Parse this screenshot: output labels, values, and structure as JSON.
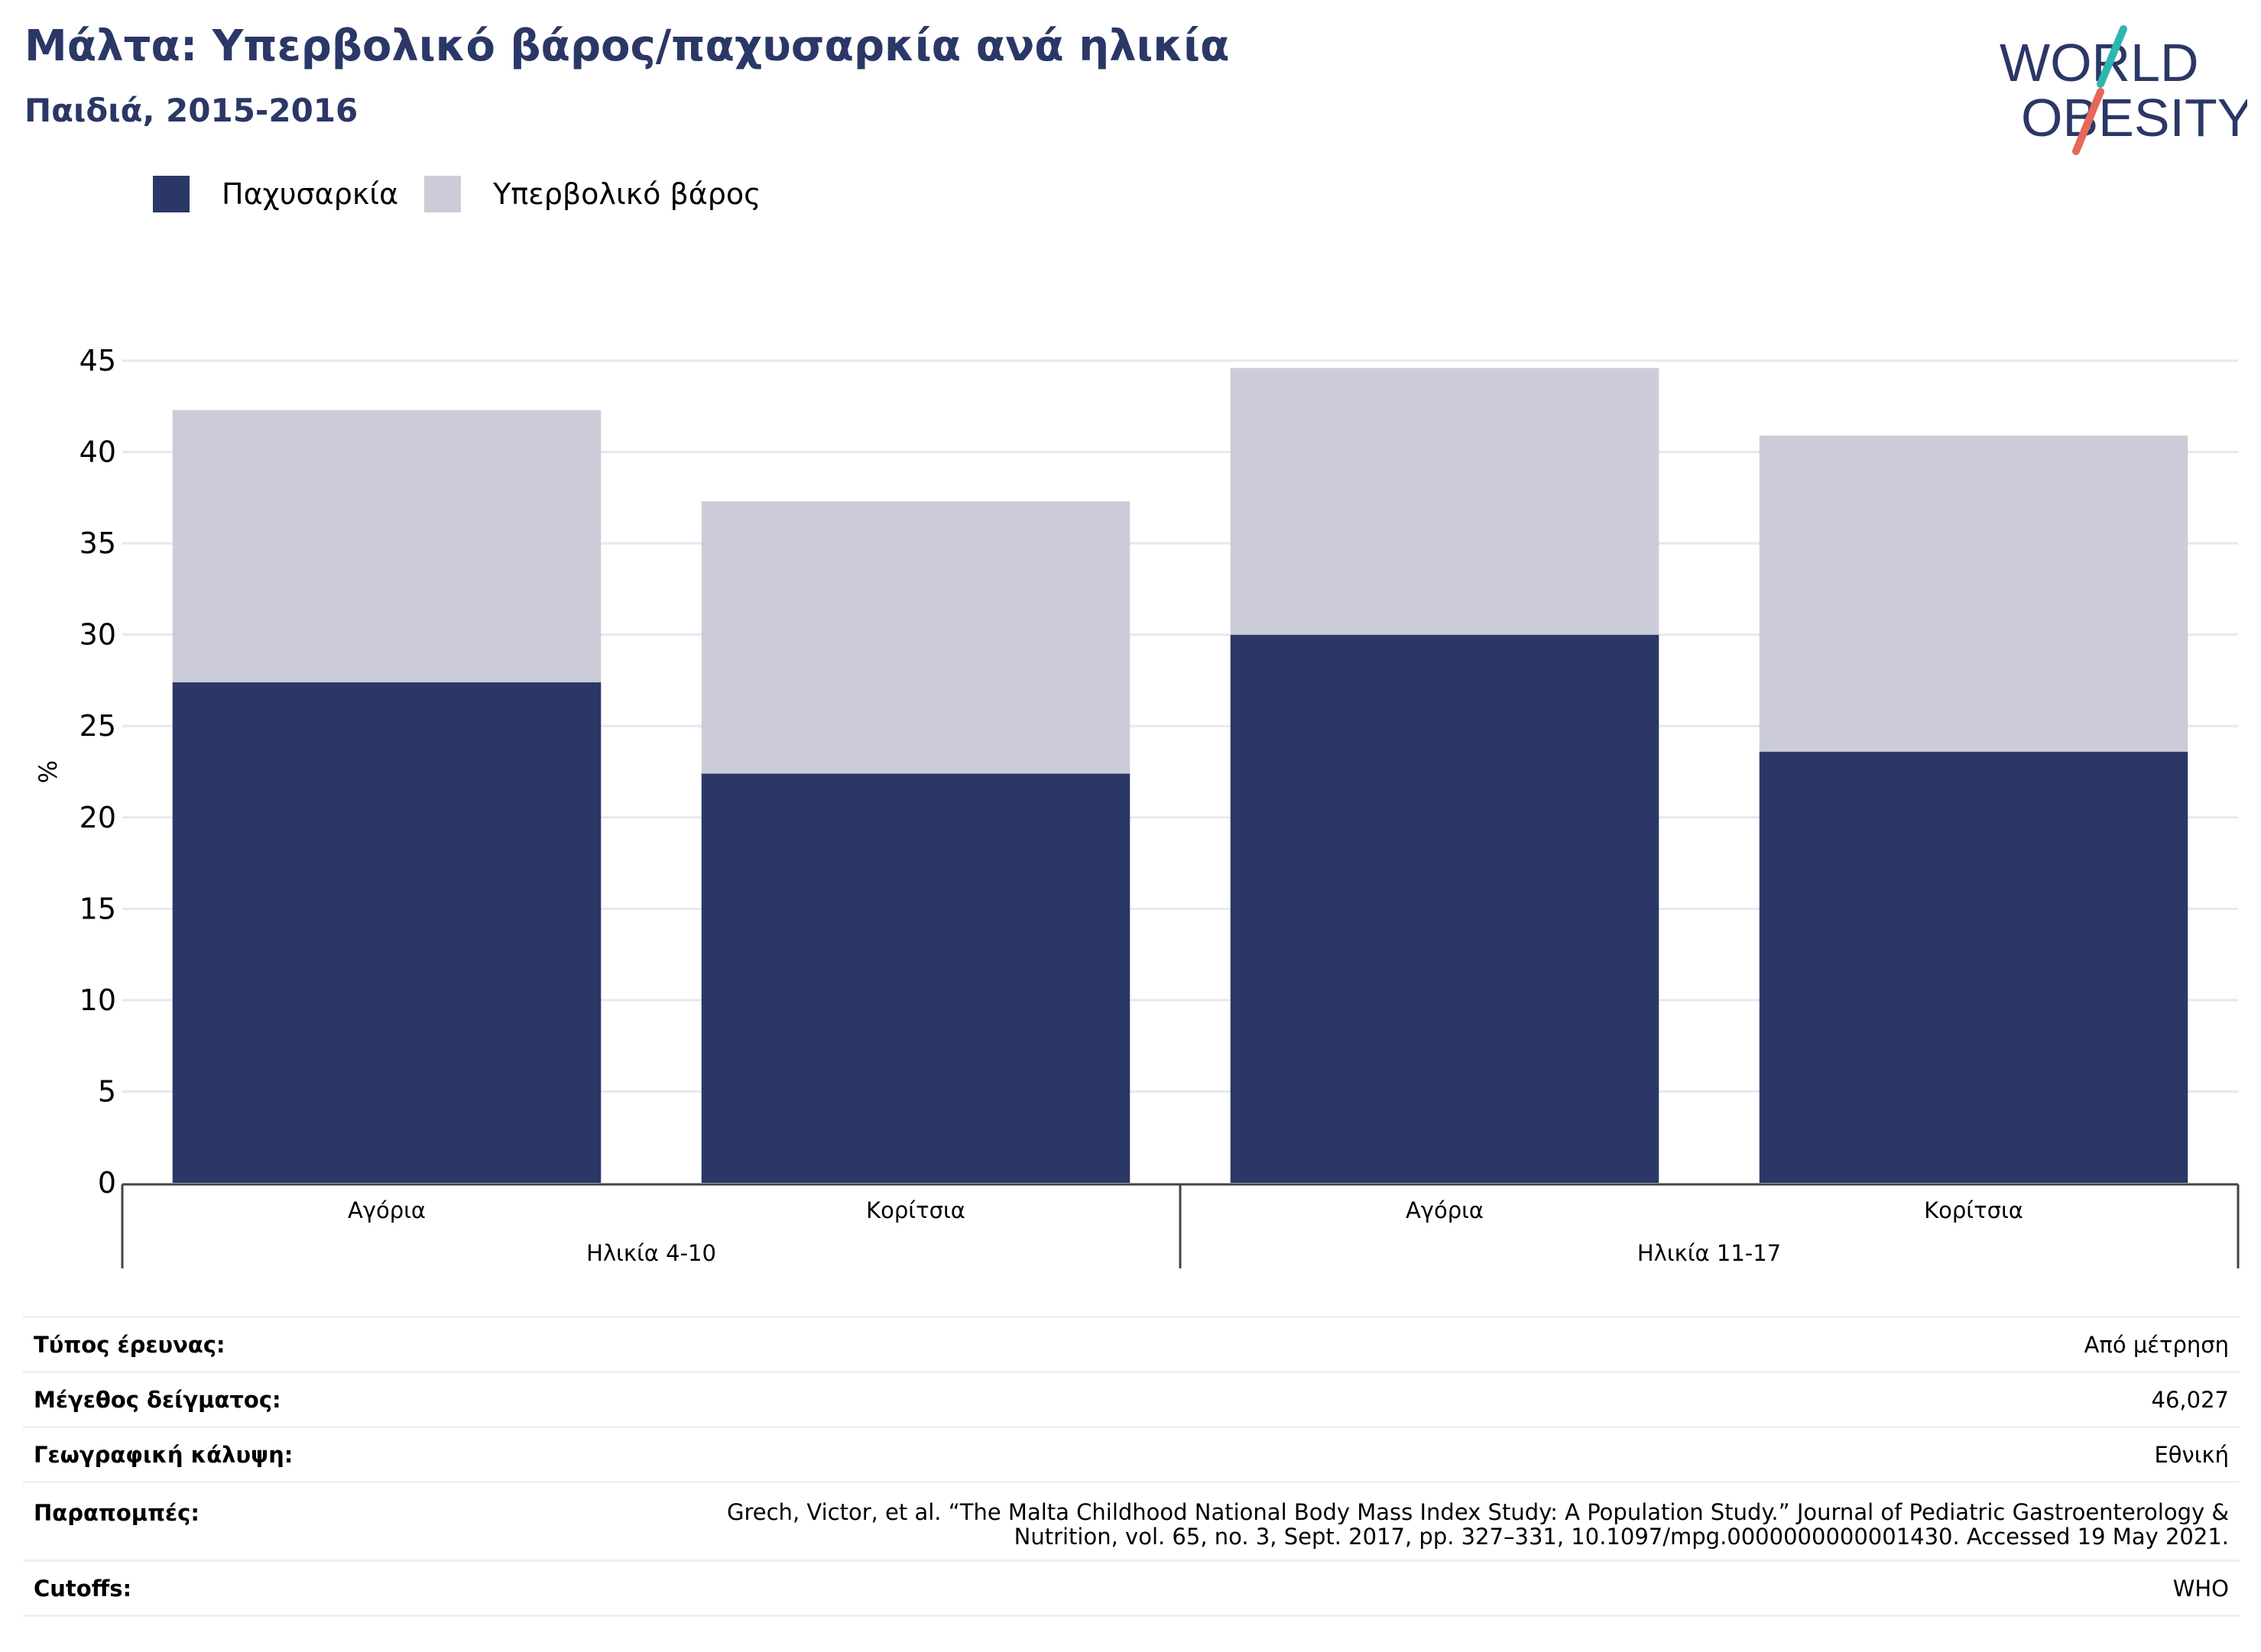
{
  "title": "Μάλτα: Υπερβολικό βάρος/παχυσαρκία ανά ηλικία",
  "subtitle": "Παιδιά, 2015-2016",
  "logo": {
    "line1": "WORLD",
    "line2": "OBESITY"
  },
  "colors": {
    "obesity": "#2b3766",
    "overweight": "#cbccd8",
    "title": "#2b3766",
    "grid": "#e6e8ee",
    "axis": "#444444",
    "accent_teal": "#2fb5b0",
    "accent_red": "#e5685a"
  },
  "legend": [
    {
      "label": "Παχυσαρκία",
      "color": "#2b3766"
    },
    {
      "label": "Υπερβολικό βάρος",
      "color": "#cbccd8"
    }
  ],
  "chart_data": {
    "type": "bar",
    "stacked": true,
    "ylabel": "%",
    "ylim": [
      0,
      45
    ],
    "yticks": [
      0,
      5,
      10,
      15,
      20,
      25,
      30,
      35,
      40,
      45
    ],
    "grid": true,
    "groups": [
      {
        "label": "Ηλικία 4-10",
        "categories": [
          "Αγόρια",
          "Κορίτσια"
        ]
      },
      {
        "label": "Ηλικία 11-17",
        "categories": [
          "Αγόρια",
          "Κορίτσια"
        ]
      }
    ],
    "categories": [
      "Αγόρια",
      "Κορίτσια",
      "Αγόρια",
      "Κορίτσια"
    ],
    "series": [
      {
        "name": "Παχυσαρκία",
        "values": [
          27.4,
          22.4,
          30.0,
          23.6
        ]
      },
      {
        "name": "Υπερβολικό βάρος",
        "values": [
          14.9,
          14.9,
          14.6,
          17.3
        ]
      }
    ]
  },
  "info": [
    {
      "key": "Τύπος έρευνας:",
      "value": "Από μέτρηση"
    },
    {
      "key": "Μέγεθος δείγματος:",
      "value": "46,027"
    },
    {
      "key": "Γεωγραφική κάλυψη:",
      "value": "Εθνική"
    },
    {
      "key": "Παραπομπές:",
      "value_line1": "Grech, Victor, et al. “The Malta Childhood National Body Mass Index Study: A Population Study.” Journal of Pediatric Gastroenterology &",
      "value_line2": "Nutrition, vol. 65, no. 3, Sept. 2017, pp. 327–331, 10.1097/mpg.0000000000001430. Accessed 19 May 2021."
    },
    {
      "key": "Cutoffs:",
      "value": "WHO"
    }
  ]
}
